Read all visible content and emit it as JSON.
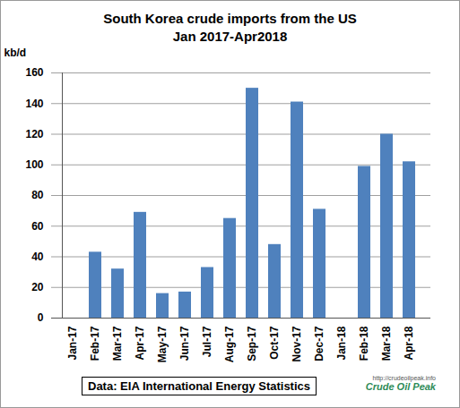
{
  "chart_data": {
    "type": "bar",
    "title": "South Korea crude imports from the US",
    "subtitle": "Jan 2017-Apr2018",
    "y_label": "kb/d",
    "categories": [
      "Jan-17",
      "Feb-17",
      "Mar-17",
      "Apr-17",
      "May-17",
      "Jun-17",
      "Jul-17",
      "Aug-17",
      "Sep-17",
      "Oct-17",
      "Nov-17",
      "Dec-17",
      "Jan-18",
      "Feb-18",
      "Mar-18",
      "Apr-18"
    ],
    "values": [
      0,
      43,
      32,
      69,
      16,
      17,
      33,
      65,
      150,
      48,
      141,
      71,
      0,
      99,
      120,
      102
    ],
    "color": "#4f81bd",
    "ylim": [
      0,
      160
    ],
    "yticks": [
      0,
      20,
      40,
      60,
      80,
      100,
      120,
      140,
      160
    ],
    "grid": true,
    "annotations": [
      "Data: EIA International Energy Statistics",
      "http://crudeoilpeak.info",
      "Crude Oil Peak"
    ]
  }
}
